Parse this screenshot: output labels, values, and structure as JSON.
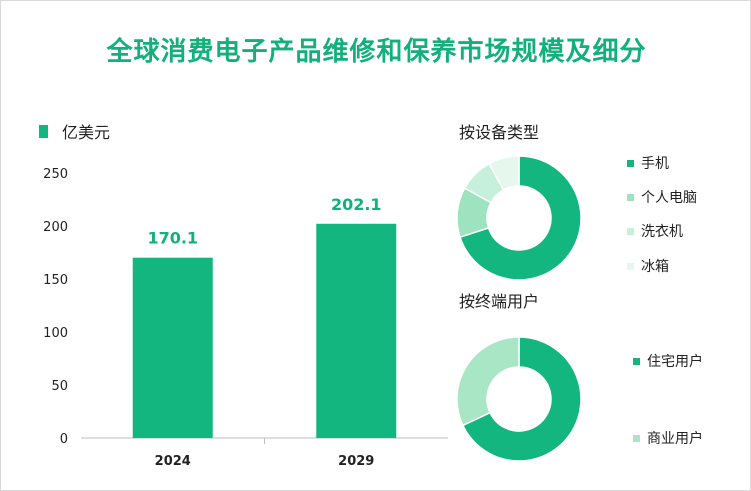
{
  "title": "全球消费电子产品维修和保养市场规模及细分",
  "chart_data": [
    {
      "type": "bar",
      "title": "全球消费电子产品维修和保养市场规模及细分",
      "legend": "亿美元",
      "categories": [
        "2024",
        "2029"
      ],
      "values": [
        170.1,
        202.1
      ],
      "data_labels": [
        "170.1",
        "202.1"
      ],
      "ylim": [
        0,
        250
      ],
      "yticks": [
        0,
        50,
        100,
        150,
        200,
        250
      ],
      "ytick_labels": [
        "0",
        "50",
        "100",
        "150",
        "200",
        "250"
      ],
      "color": "#13b67f"
    },
    {
      "type": "pie",
      "donut": true,
      "title": "按设备类型",
      "labels": [
        "手机",
        "个人电脑",
        "洗衣机",
        "冰箱"
      ],
      "values": [
        70,
        13,
        9,
        8
      ],
      "colors": [
        "#13b67f",
        "#9de3bf",
        "#c6f0da",
        "#e6f8ee"
      ]
    },
    {
      "type": "pie",
      "donut": true,
      "title": "按终端用户",
      "labels": [
        "住宅用户",
        "商业用户"
      ],
      "values": [
        68,
        32
      ],
      "colors": [
        "#13b67f",
        "#a8e6c6"
      ]
    }
  ]
}
